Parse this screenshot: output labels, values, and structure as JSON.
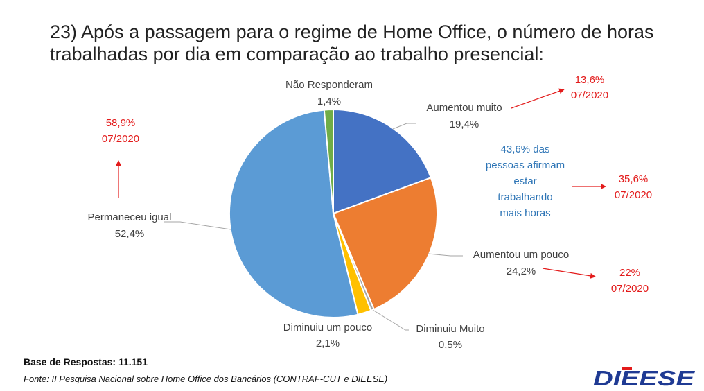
{
  "title": {
    "line1": "23) Após a passagem para o regime de Home Office, o número de horas",
    "line2": "trabalhadas por dia em comparação ao trabalho presencial:"
  },
  "chart_data": {
    "type": "pie",
    "title": "23) Após a passagem para o regime de Home Office, o número de horas trabalhadas por dia em comparação ao trabalho presencial:",
    "slices": [
      {
        "label": "Aumentou muito",
        "value": 19.4,
        "value_label": "19,4%",
        "color": "#4472c4"
      },
      {
        "label": "Aumentou um pouco",
        "value": 24.2,
        "value_label": "24,2%",
        "color": "#ed7d31"
      },
      {
        "label": "Diminuiu Muito",
        "value": 0.5,
        "value_label": "0,5%",
        "color": "#a5a5a5"
      },
      {
        "label": "Diminuiu um pouco",
        "value": 2.1,
        "value_label": "2,1%",
        "color": "#ffc000"
      },
      {
        "label": "Permaneceu igual",
        "value": 52.4,
        "value_label": "52,4%",
        "color": "#5b9bd5"
      },
      {
        "label": "Não Responderam",
        "value": 1.4,
        "value_label": "1,4%",
        "color": "#70ad47"
      }
    ],
    "comparisons": [
      {
        "slice": "Aumentou muito",
        "value": "13,6%",
        "date": "07/2020"
      },
      {
        "slice": "Aumentou um pouco",
        "value": "22%",
        "date": "07/2020"
      },
      {
        "slice": "Permaneceu igual",
        "value": "58,9%",
        "date": "07/2020"
      },
      {
        "slice": "Aumentaram (total)",
        "value": "35,6%",
        "date": "07/2020"
      }
    ],
    "annotation": {
      "lines": [
        "43,6% das",
        "pessoas afirmam",
        "estar",
        "trabalhando",
        "mais horas"
      ]
    }
  },
  "footer": {
    "base": "Base de Respostas: 11.151",
    "source": "Fonte: II Pesquisa Nacional sobre Home Office dos Bancários (CONTRAF-CUT e DIEESE)",
    "logo_text": "DIEESE"
  },
  "colors": {
    "arrow_red": "#e31b1b",
    "leader": "#a6a6a6",
    "logo_blue": "#1f3a93",
    "logo_red": "#e31b1b"
  }
}
